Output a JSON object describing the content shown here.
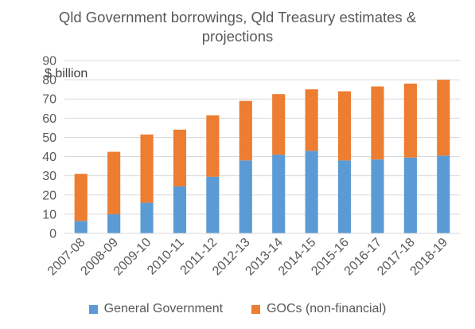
{
  "chart_data": {
    "type": "bar",
    "stacked": true,
    "title_lines": [
      "Qld Government borrowings, Qld Treasury estimates &",
      "projections"
    ],
    "unit_label": "$ billion",
    "categories": [
      "2007-08",
      "2008-09",
      "2009-10",
      "2010-11",
      "2011-12",
      "2012-13",
      "2013-14",
      "2014-15",
      "2015-16",
      "2016-17",
      "2017-18",
      "2018-19"
    ],
    "series": [
      {
        "name": "General Government",
        "color": "#5B9BD5",
        "values": [
          6.5,
          10,
          16,
          24.5,
          29.5,
          38,
          41,
          43,
          38,
          38.5,
          39.5,
          40.5
        ]
      },
      {
        "name": "GOCs (non-financial)",
        "color": "#ED7D31",
        "values": [
          24.5,
          32.5,
          35.5,
          29.5,
          32,
          31,
          31.5,
          32,
          36,
          38,
          38.5,
          39.5
        ]
      }
    ],
    "ylim": [
      0,
      90
    ],
    "yticks": [
      "0",
      "10",
      "20",
      "30",
      "40",
      "50",
      "60",
      "70",
      "80",
      "90"
    ],
    "grid": true,
    "legend_position": "bottom"
  }
}
